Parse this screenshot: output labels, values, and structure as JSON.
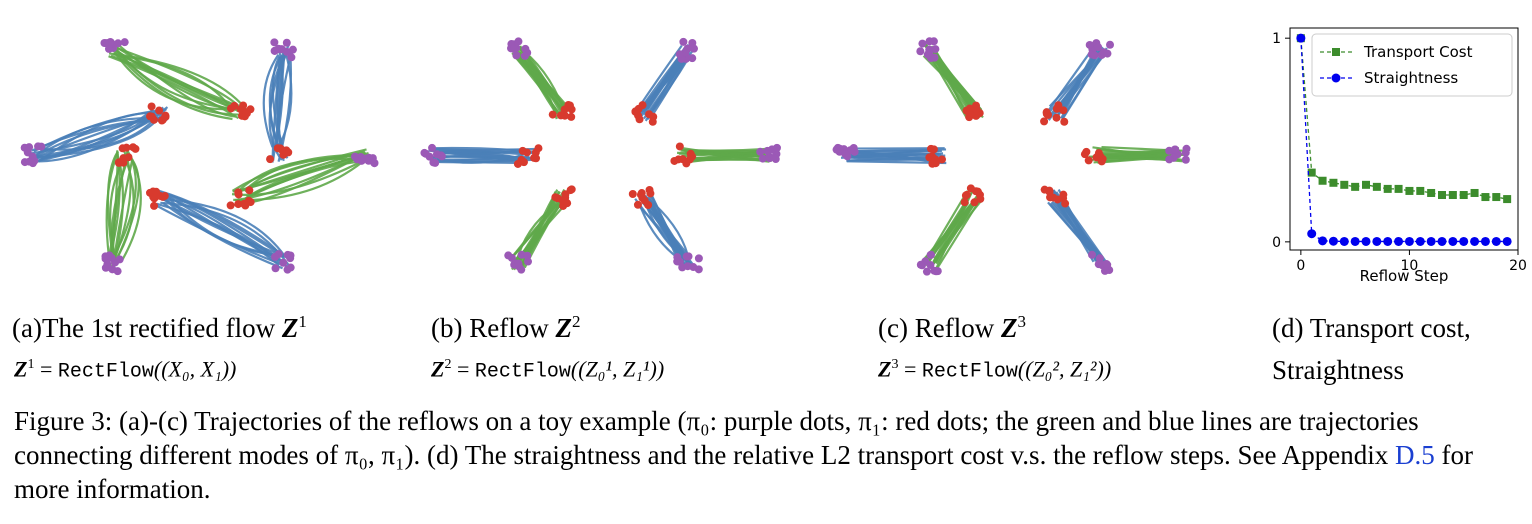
{
  "colors": {
    "green": "#5fa84a",
    "blue": "#4a7fb8",
    "purple": "#9b59b6",
    "red": "#d83a2e",
    "chart_green": "#3c8c2c",
    "chart_blue": "#0000ee",
    "link": "#1a3fd1"
  },
  "panels": [
    {
      "label": "(a)The 1st rectified flow ",
      "sym": "Z",
      "sup": "1",
      "eq": {
        "lhs": "Z",
        "lhs_sup": "1",
        "fn": "RectFlow",
        "args": "((X₀, X₁))"
      }
    },
    {
      "label": "(b) Reflow ",
      "sym": "Z",
      "sup": "2",
      "eq": {
        "lhs": "Z",
        "lhs_sup": "2",
        "fn": "RectFlow",
        "args": "((Z₀¹, Z₁¹))"
      }
    },
    {
      "label": "(c) Reflow ",
      "sym": "Z",
      "sup": "3",
      "eq": {
        "lhs": "Z",
        "lhs_sup": "3",
        "fn": "RectFlow",
        "args": "((Z₀², Z₁²))"
      }
    }
  ],
  "panel_d": {
    "line1": "(d) Transport cost,",
    "line2": "Straightness"
  },
  "figure_caption": {
    "prefix": "Figure 3: (a)-(c) Trajectories of the reflows on a toy example (π₀: purple dots, π₁: red dots; the green and blue lines are trajectories connecting different modes of π₀, π₁). (d) The straightness and the relative L2 transport cost v.s. the reflow steps. See Appendix ",
    "link": "D.5",
    "suffix": " for more information."
  },
  "chart_data": {
    "type": "line",
    "xlabel": "Reflow Step",
    "ylabel": "",
    "xlim": [
      -1,
      20
    ],
    "ylim": [
      -0.04,
      1.05
    ],
    "xticks": [
      0,
      10,
      20
    ],
    "yticks": [
      0,
      1
    ],
    "grid": false,
    "legend_position": "top-right",
    "x": [
      0,
      1,
      2,
      3,
      4,
      5,
      6,
      7,
      8,
      9,
      10,
      11,
      12,
      13,
      14,
      15,
      16,
      17,
      18,
      19
    ],
    "series": [
      {
        "name": "Transport Cost",
        "marker": "square",
        "color": "#3c8c2c",
        "values": [
          1.0,
          0.34,
          0.3,
          0.29,
          0.28,
          0.27,
          0.28,
          0.27,
          0.26,
          0.26,
          0.25,
          0.25,
          0.24,
          0.23,
          0.23,
          0.23,
          0.24,
          0.22,
          0.22,
          0.21
        ]
      },
      {
        "name": "Straightness",
        "marker": "circle",
        "color": "#0000ee",
        "values": [
          1.0,
          0.04,
          0.005,
          0.003,
          0.002,
          0.002,
          0.002,
          0.002,
          0.002,
          0.002,
          0.002,
          0.002,
          0.002,
          0.002,
          0.002,
          0.002,
          0.002,
          0.002,
          0.002,
          0.002
        ]
      }
    ]
  }
}
